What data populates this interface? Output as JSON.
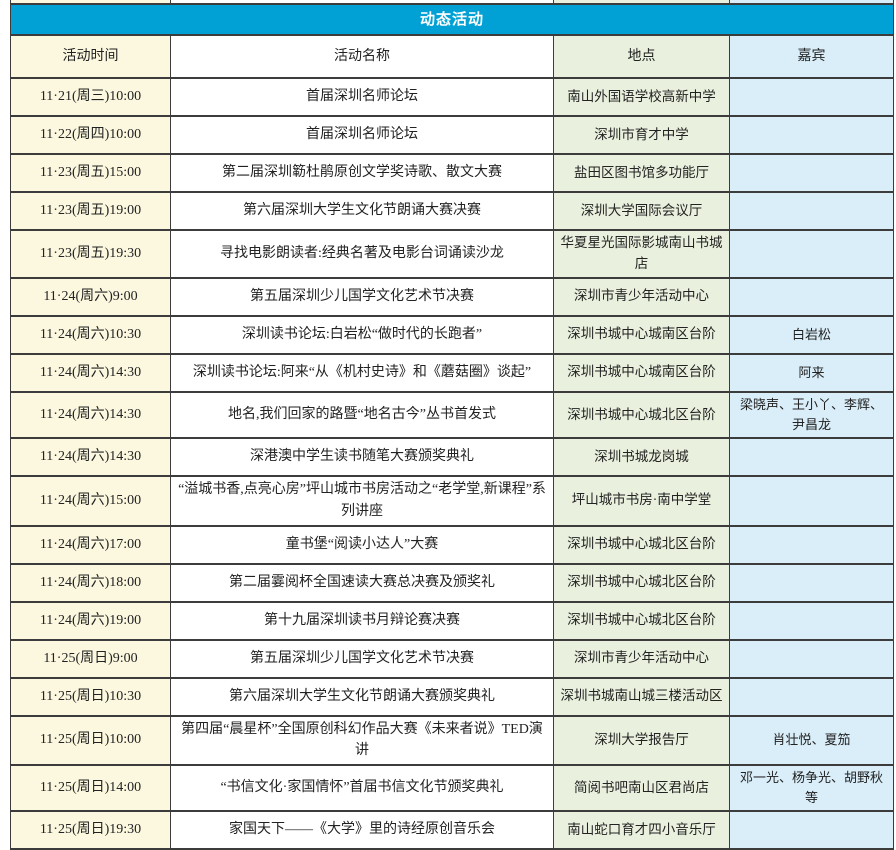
{
  "title": "动态活动",
  "columns": {
    "time": "活动时间",
    "name": "活动名称",
    "location": "地点",
    "guests": "嘉宾"
  },
  "colors": {
    "title_bar": "#02a1d5",
    "title_text": "#ffffff",
    "time_col": "#fcf8df",
    "name_col": "#ffffff",
    "location_col": "#e9f1de",
    "guest_col": "#d9eef9",
    "border": "#3c3c3c"
  },
  "rows": [
    {
      "time": "11·21(周三)10:00",
      "name": "首届深圳名师论坛",
      "location": "南山外国语学校高新中学",
      "guests": ""
    },
    {
      "time": "11·22(周四)10:00",
      "name": "首届深圳名师论坛",
      "location": "深圳市育才中学",
      "guests": ""
    },
    {
      "time": "11·23(周五)15:00",
      "name": "第二届深圳簕杜鹃原创文学奖诗歌、散文大赛",
      "location": "盐田区图书馆多功能厅",
      "guests": ""
    },
    {
      "time": "11·23(周五)19:00",
      "name": "第六届深圳大学生文化节朗诵大赛决赛",
      "location": "深圳大学国际会议厅",
      "guests": ""
    },
    {
      "time": "11·23(周五)19:30",
      "name": "寻找电影朗读者:经典名著及电影台词诵读沙龙",
      "location": "华夏星光国际影城南山书城店",
      "guests": ""
    },
    {
      "time": "11·24(周六)9:00",
      "name": "第五届深圳少儿国学文化艺术节决赛",
      "location": "深圳市青少年活动中心",
      "guests": ""
    },
    {
      "time": "11·24(周六)10:30",
      "name": "深圳读书论坛:白岩松“做时代的长跑者”",
      "location": "深圳书城中心城南区台阶",
      "guests": "白岩松"
    },
    {
      "time": "11·24(周六)14:30",
      "name": "深圳读书论坛:阿来“从《机村史诗》和《蘑菇圈》谈起”",
      "location": "深圳书城中心城南区台阶",
      "guests": "阿来"
    },
    {
      "time": "11·24(周六)14:30",
      "name": "地名,我们回家的路暨“地名古今”丛书首发式",
      "location": "深圳书城中心城北区台阶",
      "guests": "梁晓声、王小丫、李辉、尹昌龙"
    },
    {
      "time": "11·24(周六)14:30",
      "name": "深港澳中学生读书随笔大赛颁奖典礼",
      "location": "深圳书城龙岗城",
      "guests": ""
    },
    {
      "time": "11·24(周六)15:00",
      "name": "“溢城书香,点亮心房”坪山城市书房活动之“老学堂,新课程”系列讲座",
      "location": "坪山城市书房·南中学堂",
      "guests": ""
    },
    {
      "time": "11·24(周六)17:00",
      "name": "童书堡“阅读小达人”大赛",
      "location": "深圳书城中心城北区台阶",
      "guests": ""
    },
    {
      "time": "11·24(周六)18:00",
      "name": "第二届霎阅杯全国速读大赛总决赛及颁奖礼",
      "location": "深圳书城中心城北区台阶",
      "guests": ""
    },
    {
      "time": "11·24(周六)19:00",
      "name": "第十九届深圳读书月辩论赛决赛",
      "location": "深圳书城中心城北区台阶",
      "guests": ""
    },
    {
      "time": "11·25(周日)9:00",
      "name": "第五届深圳少儿国学文化艺术节决赛",
      "location": "深圳市青少年活动中心",
      "guests": ""
    },
    {
      "time": "11·25(周日)10:30",
      "name": "第六届深圳大学生文化节朗诵大赛颁奖典礼",
      "location": "深圳书城南山城三楼活动区",
      "guests": ""
    },
    {
      "time": "11·25(周日)10:00",
      "name": "第四届“晨星杯”全国原创科幻作品大赛《未来者说》TED演讲",
      "location": "深圳大学报告厅",
      "guests": "肖壮悦、夏笳"
    },
    {
      "time": "11·25(周日)14:00",
      "name": "“书信文化·家国情怀”首届书信文化节颁奖典礼",
      "location": "简阅书吧南山区君尚店",
      "guests": "邓一光、杨争光、胡野秋等"
    },
    {
      "time": "11·25(周日)19:30",
      "name": "家国天下——《大学》里的诗经原创音乐会",
      "location": "南山蛇口育才四小音乐厅",
      "guests": ""
    }
  ]
}
